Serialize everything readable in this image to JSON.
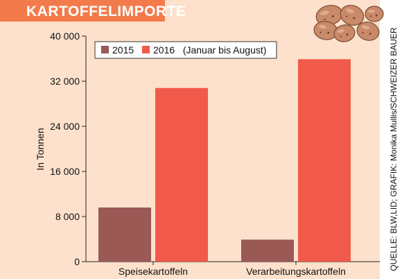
{
  "chart_data": {
    "type": "bar",
    "title": "KARTOFFELIMPORTE",
    "ylabel": "In Tonnen",
    "xlabel": "",
    "categories": [
      "Speisekartoffeln",
      "Verarbeitungskartoffeln"
    ],
    "series": [
      {
        "name": "2015",
        "values": [
          9600,
          3900
        ],
        "color": "#9b5956"
      },
      {
        "name": "2016   (Januar bis August)",
        "values": [
          30800,
          35900
        ],
        "color": "#f15a4a"
      }
    ],
    "ylim": [
      0,
      40000
    ],
    "yticks": [
      "0",
      "8 000",
      "16 000",
      "24 000",
      "32 000",
      "40 000"
    ],
    "ytick_values": [
      0,
      8000,
      16000,
      24000,
      32000,
      40000
    ],
    "grid": false,
    "legend": "top-left",
    "source": "QUELLE: BLW,LID; GRAFIK: Monika Mullis/SCHWEIZER BAUER",
    "colors": {
      "plot_background": "#fde1cc",
      "title_bar": "#f37b4b",
      "axis": "#222222",
      "potato": "#c98a6a"
    }
  }
}
